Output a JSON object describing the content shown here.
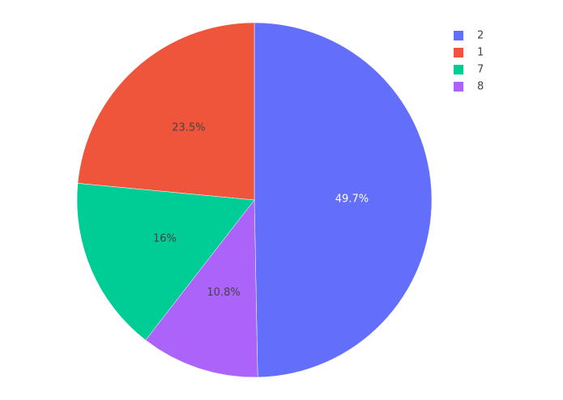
{
  "chart_data": {
    "type": "pie",
    "categories": [
      "2",
      "1",
      "7",
      "8"
    ],
    "values": [
      49.7,
      23.5,
      16,
      10.8
    ],
    "value_labels": [
      "49.7%",
      "23.5%",
      "16%",
      "10.8%"
    ],
    "colors": [
      "#636efa",
      "#ef553b",
      "#00cc96",
      "#ab63fa"
    ],
    "direction": "counterclockwise",
    "legend": "top-right"
  }
}
